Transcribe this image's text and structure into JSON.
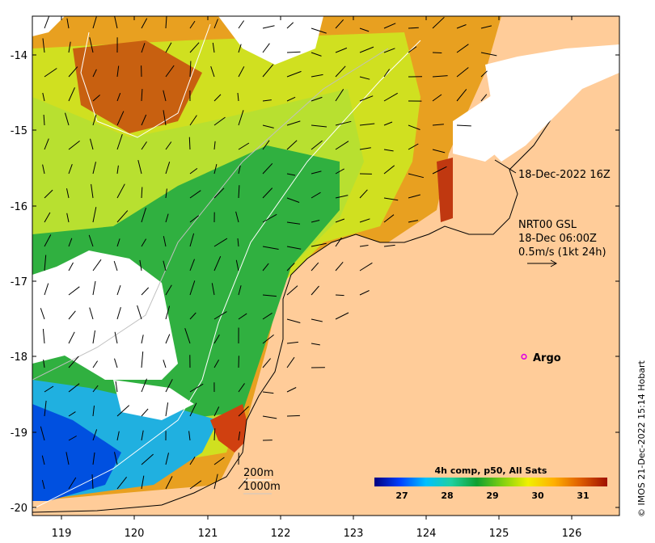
{
  "axes": {
    "x_ticks": [
      "119",
      "120",
      "121",
      "122",
      "123",
      "124",
      "125",
      "126"
    ],
    "y_ticks": [
      "-14",
      "-15",
      "-16",
      "-17",
      "-18",
      "-19",
      "-20"
    ],
    "xlim": [
      118.6,
      126.6
    ],
    "ylim": [
      -20.1,
      -13.5
    ]
  },
  "annotations": {
    "image_time": "18-Dec-2022 16Z",
    "current_source": "NRT00 GSL",
    "current_time": "18-Dec 06:00Z",
    "current_scale": "0.5m/s (1kt 24h)"
  },
  "markers": [
    {
      "label": "Argo",
      "lon": 125.3,
      "lat": -18.0,
      "color": "#e000e0"
    }
  ],
  "isobath_legend": {
    "items": [
      {
        "label": "200m",
        "color": "#ffffff"
      },
      {
        "label": "1000m",
        "color": "#c8c8c8"
      }
    ]
  },
  "colorbar": {
    "title": "4h comp, p50, All Sats",
    "ticks": [
      "27",
      "28",
      "29",
      "30",
      "31"
    ],
    "range": [
      26.3,
      31.7
    ],
    "colors": [
      "#00007f",
      "#0040ff",
      "#00c0ff",
      "#20d0a0",
      "#10a030",
      "#80d010",
      "#f0f000",
      "#ffb000",
      "#e06000",
      "#a01000"
    ]
  },
  "colors": {
    "land": "#ffcc99",
    "cloud": "#ffffff"
  },
  "credit": "© IMOS 21-Dec-2022 15:14 Hobart"
}
